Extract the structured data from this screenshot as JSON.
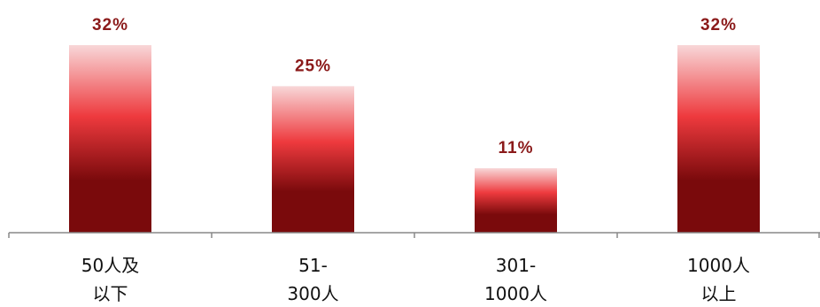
{
  "colors": {
    "bar_top": "#f8d7d8",
    "bar_mid": "#ee3a3e",
    "bar_bottom": "#7a0a0c",
    "value_label": "#8b1a1a",
    "axis": "#888888"
  },
  "chart_data": {
    "type": "bar",
    "categories": [
      [
        "50人及",
        "以下"
      ],
      [
        "51-",
        "300人"
      ],
      [
        "301-",
        "1000人"
      ],
      [
        "1000人",
        "以上"
      ]
    ],
    "values": [
      32,
      25,
      11,
      32
    ],
    "data_labels": [
      "32%",
      "25%",
      "11%",
      "32%"
    ],
    "title": "",
    "xlabel": "",
    "ylabel": "",
    "ylim": [
      0,
      32
    ],
    "grid": false,
    "legend": "none"
  }
}
